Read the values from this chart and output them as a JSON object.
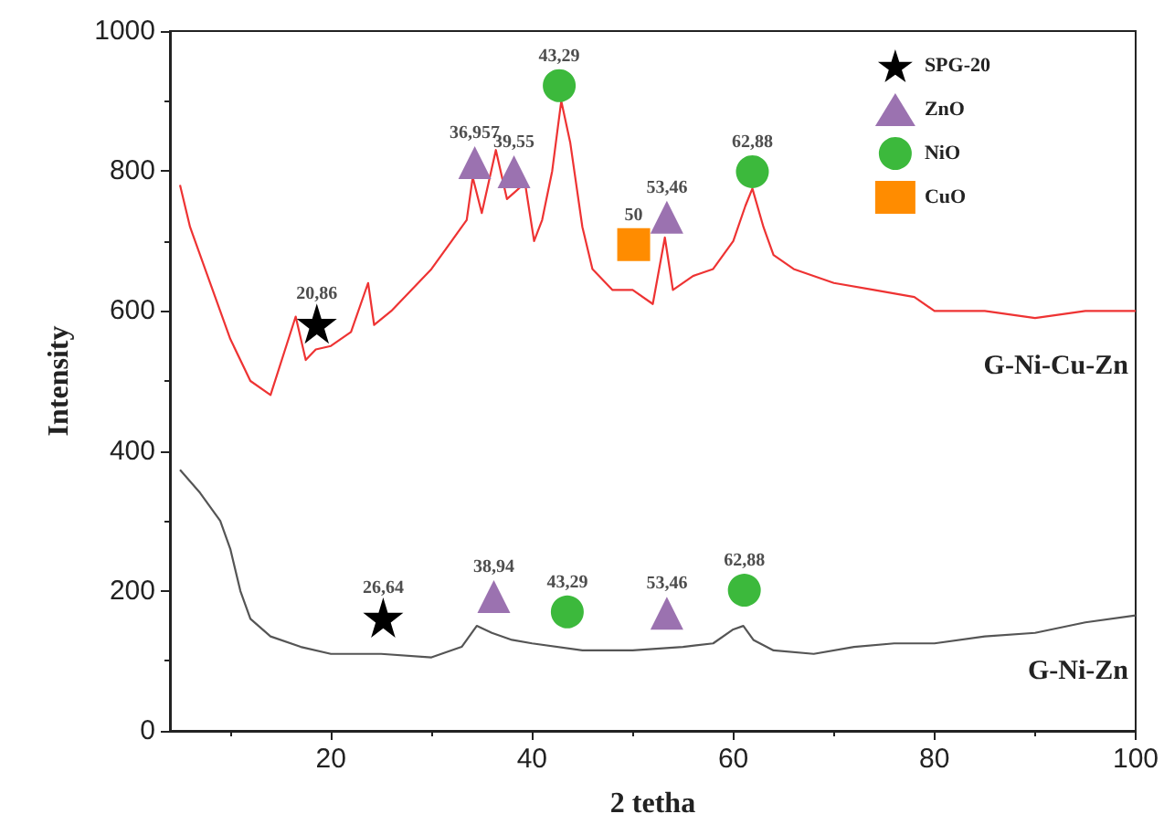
{
  "chart_data": {
    "type": "line",
    "xlabel": "2 tetha",
    "ylabel": "Intensity",
    "xlim": [
      4,
      100
    ],
    "xticks": [
      20,
      40,
      60,
      80,
      100
    ],
    "ylim": [
      0,
      1000
    ],
    "yticks": [
      0,
      200,
      400,
      600,
      800,
      1000
    ],
    "grid": false,
    "legend": "top right",
    "series": [
      {
        "name": "G-Ni-Cu-Zn",
        "color": "#ee3333",
        "x": [
          5,
          6,
          8,
          10,
          12,
          14,
          16.5,
          17.5,
          18.5,
          20,
          22,
          23.7,
          24.3,
          26,
          28,
          30,
          32,
          33.5,
          34.1,
          35,
          36.4,
          37.5,
          38.3,
          39.3,
          40.2,
          41,
          42,
          42.9,
          43.8,
          45,
          46,
          48,
          50,
          52,
          53.2,
          54,
          56,
          58,
          60,
          61.2,
          61.9,
          63,
          64,
          66,
          70,
          74,
          78,
          80,
          85,
          90,
          95,
          100
        ],
        "values": [
          780,
          720,
          640,
          560,
          500,
          480,
          592,
          530,
          545,
          550,
          570,
          640,
          580,
          600,
          630,
          660,
          700,
          730,
          791,
          740,
          830,
          760,
          770,
          783,
          700,
          730,
          800,
          900,
          840,
          720,
          660,
          630,
          630,
          610,
          705,
          630,
          650,
          660,
          700,
          750,
          775,
          720,
          680,
          660,
          640,
          630,
          620,
          600,
          600,
          590,
          600,
          600
        ]
      },
      {
        "name": "G-Ni-Zn",
        "color": "#555555",
        "x": [
          5,
          7,
          9,
          10,
          11,
          12,
          14,
          17,
          20,
          25,
          30,
          33,
          34.5,
          36,
          38,
          40,
          45,
          50,
          55,
          58,
          60,
          61,
          62,
          64,
          68,
          72,
          76,
          80,
          85,
          90,
          95,
          100
        ],
        "values": [
          373,
          340,
          300,
          260,
          200,
          160,
          135,
          120,
          110,
          110,
          105,
          120,
          150,
          140,
          130,
          125,
          115,
          115,
          120,
          125,
          145,
          150,
          130,
          115,
          110,
          120,
          125,
          125,
          135,
          140,
          155,
          165
        ]
      },
      {
        "name": "SPG-20",
        "type": "scatter",
        "marker": "star",
        "color": "#000000",
        "x": [
          18.6,
          25.2
        ],
        "values": [
          582,
          162
        ]
      },
      {
        "name": "ZnO",
        "type": "scatter",
        "marker": "triangle",
        "color": "#9b72b0",
        "x": [
          34.3,
          38.2,
          53.4,
          36.2,
          53.4
        ],
        "values": [
          812,
          799,
          734,
          192,
          168
        ]
      },
      {
        "name": "NiO",
        "type": "scatter",
        "marker": "circle",
        "color": "#3cb93c",
        "x": [
          42.7,
          61.9,
          43.5,
          61.1
        ],
        "values": [
          922,
          799,
          170,
          201
        ]
      },
      {
        "name": "CuO",
        "type": "scatter",
        "marker": "square",
        "color": "#ff8c00",
        "x": [
          50.1
        ],
        "values": [
          695
        ]
      }
    ],
    "annotations": [
      {
        "text": "20,86",
        "x": 18.6,
        "y": 582
      },
      {
        "text": "26,64",
        "x": 25.2,
        "y": 162
      },
      {
        "text": "36,957",
        "x": 34.3,
        "y": 812
      },
      {
        "text": "39,55",
        "x": 38.2,
        "y": 799
      },
      {
        "text": "53,46",
        "x": 53.4,
        "y": 734
      },
      {
        "text": "38,94",
        "x": 36.2,
        "y": 192
      },
      {
        "text": "53,46",
        "x": 53.4,
        "y": 168
      },
      {
        "text": "43,29",
        "x": 42.7,
        "y": 922
      },
      {
        "text": "62,88",
        "x": 61.9,
        "y": 799
      },
      {
        "text": "43,29",
        "x": 43.5,
        "y": 170
      },
      {
        "text": "62,88",
        "x": 61.1,
        "y": 201
      },
      {
        "text": "50",
        "x": 50.1,
        "y": 695
      }
    ]
  }
}
